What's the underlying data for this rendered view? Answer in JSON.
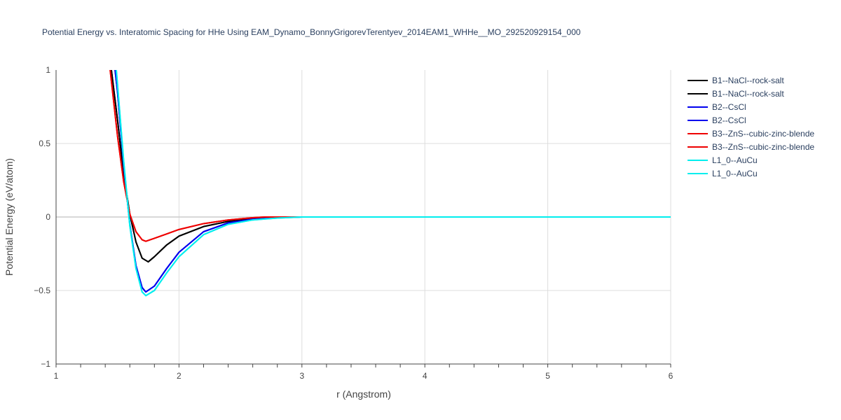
{
  "chart_data": {
    "type": "line",
    "title": "Potential Energy vs. Interatomic Spacing for HHe Using EAM_Dynamo_BonnyGrigorevTerentyev_2014EAM1_WHHe__MO_292520929154_000",
    "xlabel": "r (Angstrom)",
    "ylabel": "Potential Energy (eV/atom)",
    "xlim": [
      1,
      6
    ],
    "ylim": [
      -1,
      1
    ],
    "x_ticks": [
      1,
      2,
      3,
      4,
      5,
      6
    ],
    "x_tick_labels": [
      "1",
      "2",
      "3",
      "4",
      "5",
      "6"
    ],
    "y_ticks": [
      -1,
      -0.5,
      0,
      0.5,
      1
    ],
    "y_tick_labels": [
      "−1",
      "−0.5",
      "0",
      "0.5",
      "1"
    ],
    "grid": true,
    "legend_position": "top-right",
    "series": [
      {
        "name": "B1--NaCl--rock-salt",
        "color": "#000000",
        "x": [
          1.45,
          1.5,
          1.55,
          1.6,
          1.65,
          1.7,
          1.75,
          1.8,
          1.9,
          2.0,
          2.2,
          2.4,
          2.6,
          2.75,
          3.0,
          4.0,
          5.0,
          6.0
        ],
        "y": [
          1.0,
          0.66,
          0.29,
          0.02,
          -0.17,
          -0.28,
          -0.305,
          -0.27,
          -0.19,
          -0.13,
          -0.065,
          -0.03,
          -0.008,
          0.0,
          0.0,
          0.0,
          0.0,
          0.0
        ]
      },
      {
        "name": "B1--NaCl--rock-salt",
        "color": "#000000",
        "x": [
          1.45,
          1.5,
          1.55,
          1.6,
          1.65,
          1.7,
          1.75,
          1.8,
          1.9,
          2.0,
          2.2,
          2.4,
          2.6,
          2.75,
          3.0,
          4.0,
          5.0,
          6.0
        ],
        "y": [
          1.0,
          0.66,
          0.29,
          0.02,
          -0.17,
          -0.28,
          -0.305,
          -0.27,
          -0.19,
          -0.13,
          -0.065,
          -0.03,
          -0.008,
          0.0,
          0.0,
          0.0,
          0.0,
          0.0
        ]
      },
      {
        "name": "B2--CsCl",
        "color": "#0000ee",
        "x": [
          1.48,
          1.5,
          1.55,
          1.6,
          1.65,
          1.7,
          1.73,
          1.8,
          1.9,
          2.0,
          2.2,
          2.4,
          2.6,
          2.8,
          3.0,
          4.0,
          5.0,
          6.0
        ],
        "y": [
          1.0,
          0.85,
          0.35,
          -0.05,
          -0.33,
          -0.48,
          -0.51,
          -0.47,
          -0.35,
          -0.24,
          -0.1,
          -0.04,
          -0.015,
          -0.005,
          0.0,
          0.0,
          0.0,
          0.0
        ]
      },
      {
        "name": "B2--CsCl",
        "color": "#0000ee",
        "x": [
          1.48,
          1.5,
          1.55,
          1.6,
          1.65,
          1.7,
          1.73,
          1.8,
          1.9,
          2.0,
          2.2,
          2.4,
          2.6,
          2.8,
          3.0,
          4.0,
          5.0,
          6.0
        ],
        "y": [
          1.0,
          0.85,
          0.35,
          -0.05,
          -0.33,
          -0.48,
          -0.51,
          -0.47,
          -0.35,
          -0.24,
          -0.1,
          -0.04,
          -0.015,
          -0.005,
          0.0,
          0.0,
          0.0,
          0.0
        ]
      },
      {
        "name": "B3--ZnS--cubic-zinc-blende",
        "color": "#ee0000",
        "x": [
          1.44,
          1.5,
          1.55,
          1.6,
          1.65,
          1.7,
          1.73,
          1.8,
          1.9,
          2.0,
          2.2,
          2.4,
          2.6,
          2.7,
          3.0,
          4.0,
          5.0,
          6.0
        ],
        "y": [
          1.0,
          0.55,
          0.24,
          0.02,
          -0.1,
          -0.155,
          -0.165,
          -0.145,
          -0.115,
          -0.085,
          -0.045,
          -0.02,
          -0.005,
          0.0,
          0.0,
          0.0,
          0.0,
          0.0
        ]
      },
      {
        "name": "B3--ZnS--cubic-zinc-blende",
        "color": "#ee0000",
        "x": [
          1.44,
          1.5,
          1.55,
          1.6,
          1.65,
          1.7,
          1.73,
          1.8,
          1.9,
          2.0,
          2.2,
          2.4,
          2.6,
          2.7,
          3.0,
          4.0,
          5.0,
          6.0
        ],
        "y": [
          1.0,
          0.55,
          0.24,
          0.02,
          -0.1,
          -0.155,
          -0.165,
          -0.145,
          -0.115,
          -0.085,
          -0.045,
          -0.02,
          -0.005,
          0.0,
          0.0,
          0.0,
          0.0,
          0.0
        ]
      },
      {
        "name": "L1_0--AuCu",
        "color": "#00eeee",
        "x": [
          1.49,
          1.5,
          1.55,
          1.6,
          1.65,
          1.7,
          1.73,
          1.8,
          1.9,
          2.0,
          2.2,
          2.4,
          2.6,
          2.8,
          3.0,
          4.0,
          5.0,
          6.0
        ],
        "y": [
          1.0,
          0.9,
          0.38,
          -0.06,
          -0.35,
          -0.51,
          -0.535,
          -0.5,
          -0.38,
          -0.27,
          -0.12,
          -0.05,
          -0.02,
          -0.007,
          0.0,
          0.0,
          0.0,
          0.0
        ]
      },
      {
        "name": "L1_0--AuCu",
        "color": "#00eeee",
        "x": [
          1.49,
          1.5,
          1.55,
          1.6,
          1.65,
          1.7,
          1.73,
          1.8,
          1.9,
          2.0,
          2.2,
          2.4,
          2.6,
          2.8,
          3.0,
          4.0,
          5.0,
          6.0
        ],
        "y": [
          1.0,
          0.9,
          0.38,
          -0.06,
          -0.35,
          -0.51,
          -0.535,
          -0.5,
          -0.38,
          -0.27,
          -0.12,
          -0.05,
          -0.02,
          -0.007,
          0.0,
          0.0,
          0.0,
          0.0
        ]
      }
    ]
  }
}
